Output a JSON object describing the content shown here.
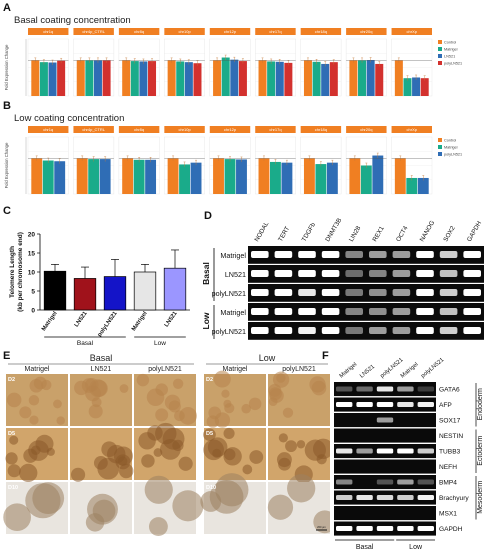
{
  "panels": {
    "A": {
      "label": "A",
      "title": "Basal coating concentration"
    },
    "B": {
      "label": "B",
      "title": "Low coating concentration"
    },
    "C": {
      "label": "C"
    },
    "D": {
      "label": "D"
    },
    "E": {
      "label": "E"
    },
    "F": {
      "label": "F"
    }
  },
  "chart_data": [
    {
      "type": "bar",
      "panel": "A",
      "title": "Basal coating concentration",
      "ylabel": "Fold Expression Change",
      "facets": [
        "chr1q",
        "chr4p_CTRL",
        "chr8q",
        "chr10p",
        "chr12p",
        "chr17q",
        "chr18q",
        "chr20q",
        "chrXp"
      ],
      "series": [
        {
          "name": "Control",
          "color": "#f07f22",
          "values": [
            1.0,
            1.0,
            1.0,
            1.0,
            1.0,
            1.0,
            1.0,
            1.0,
            1.0
          ]
        },
        {
          "name": "Matrigel",
          "color": "#1aab8a",
          "values": [
            0.95,
            1.0,
            0.98,
            0.97,
            1.08,
            0.97,
            0.96,
            1.0,
            0.5
          ]
        },
        {
          "name": "LN521",
          "color": "#2f6db5",
          "values": [
            0.94,
            1.0,
            0.97,
            0.95,
            1.02,
            0.96,
            0.9,
            1.01,
            0.52
          ]
        },
        {
          "name": "polyLN521",
          "color": "#d3312e",
          "values": [
            0.99,
            1.0,
            0.98,
            0.92,
            0.98,
            0.93,
            0.95,
            0.9,
            0.5
          ]
        }
      ],
      "ylim": [
        0,
        1.6
      ]
    },
    {
      "type": "bar",
      "panel": "B",
      "title": "Low coating concentration",
      "ylabel": "Fold Expression Change",
      "facets": [
        "chr1q",
        "chr4p_CTRL",
        "chr8q",
        "chr10p",
        "chr12p",
        "chr17q",
        "chr18q",
        "chr20q",
        "chrXp"
      ],
      "series": [
        {
          "name": "Control",
          "color": "#f07f22",
          "values": [
            1.0,
            1.0,
            1.0,
            1.0,
            1.0,
            1.0,
            1.0,
            1.0,
            1.0
          ]
        },
        {
          "name": "Matrigel",
          "color": "#1aab8a",
          "values": [
            0.94,
            0.98,
            0.96,
            0.83,
            0.98,
            0.9,
            0.84,
            0.8,
            0.45
          ]
        },
        {
          "name": "polyLN521",
          "color": "#2f6db5",
          "values": [
            0.92,
            0.98,
            0.96,
            0.88,
            0.97,
            0.88,
            0.88,
            1.08,
            0.45
          ]
        }
      ],
      "ylim": [
        0,
        1.6
      ]
    },
    {
      "type": "bar",
      "panel": "C",
      "ylabel": "Telomere Length\n(kb per chromosome end)",
      "categories": [
        "Matrigel",
        "LN521",
        "polyLN521",
        "Matrigel",
        "LN521"
      ],
      "values": [
        10.2,
        8.3,
        8.8,
        10.0,
        11.0
      ],
      "errors": [
        1.8,
        3.0,
        4.5,
        2.0,
        4.8
      ],
      "colors": [
        "#000000",
        "#a0121b",
        "#1414c8",
        "#e6e6e6",
        "#9b96ff"
      ],
      "yticks": [
        0,
        5,
        10,
        15,
        20
      ],
      "ylim": [
        0,
        20
      ],
      "groups": [
        {
          "label": "Basal",
          "span": [
            0,
            2
          ]
        },
        {
          "label": "Low",
          "span": [
            3,
            4
          ]
        }
      ]
    }
  ],
  "gel_D": {
    "markers": [
      "NODAL",
      "TERT",
      "TDGFb",
      "DNMT3B",
      "LIN28",
      "REX1",
      "OCT4",
      "NANOG",
      "SOX2",
      "GAPDH"
    ],
    "rows": [
      "Matrigel",
      "LN521",
      "polyLN521",
      "Matrigel",
      "polyLN521"
    ],
    "groups": [
      {
        "label": "Basal",
        "rows": 3
      },
      {
        "label": "Low",
        "rows": 2
      }
    ]
  },
  "panel_E": {
    "groups": [
      {
        "label": "Basal",
        "columns": [
          "Matrigel",
          "LN521",
          "polyLN521"
        ]
      },
      {
        "label": "Low",
        "columns": [
          "Matrigel",
          "polyLN521"
        ]
      }
    ],
    "days": [
      "D2",
      "D5",
      "D10"
    ],
    "scale_bar": "200 µm"
  },
  "gel_F": {
    "columns": [
      "Matrigel",
      "LN521",
      "polyLN521",
      "Matrigel",
      "polyLN521"
    ],
    "genes": [
      "GATA6",
      "AFP",
      "SOX17",
      "NESTIN",
      "TUBB3",
      "NEFH",
      "BMP4",
      "Brachyury",
      "MSX1",
      "GAPDH"
    ],
    "layers": [
      {
        "label": "Endoderm",
        "genes": 3
      },
      {
        "label": "Ectoderm",
        "genes": 3
      },
      {
        "label": "Mesoderm",
        "genes": 3
      }
    ],
    "bottom_groups": [
      "Basal",
      "Low"
    ]
  }
}
